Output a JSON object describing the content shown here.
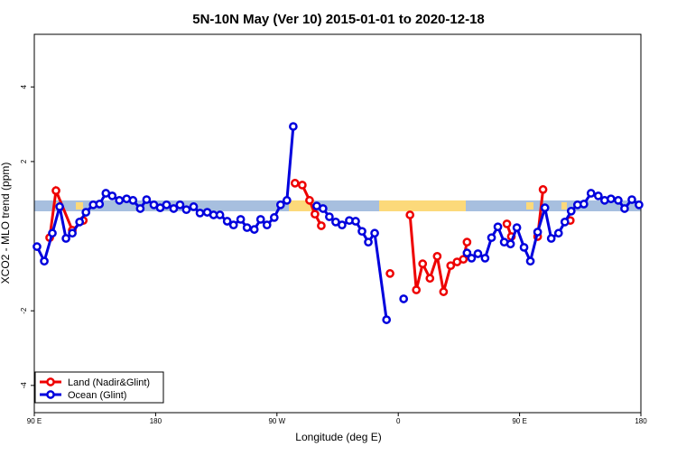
{
  "chart_data": {
    "type": "line",
    "title": "5N-10N May (Ver 10)   2015-01-01 to 2020-12-18",
    "x_label": "Longitude (deg E)",
    "y_label": "XCO2 - MLO trend (ppm)",
    "xlim": [
      90,
      540
    ],
    "xticks": [
      {
        "value": 90,
        "label": "90 E"
      },
      {
        "value": 180,
        "label": "180"
      },
      {
        "value": 270,
        "label": "90 W"
      },
      {
        "value": 360,
        "label": "0"
      },
      {
        "value": 450,
        "label": "90 E"
      },
      {
        "value": 540,
        "label": "180"
      }
    ],
    "ylim": [
      -4.73,
      5.41
    ],
    "yticks": [
      -4,
      -2,
      2,
      4
    ],
    "legend": "bottom-left",
    "series": [
      {
        "name": "Land (Nadir&Glint)",
        "color": "#ee0000",
        "x": [
          101.4,
          106.1,
          118.2,
          126.3,
          null,
          283.4,
          288.8,
          294.2,
          298.2,
          302.9,
          null,
          353.9,
          null,
          368.7,
          373.4,
          378.1,
          383.5,
          388.9,
          393.6,
          398.9,
          403.6,
          408.3,
          411.0,
          null,
          440.6,
          443.9,
          null,
          463.4,
          467.4,
          null,
          487.6
        ],
        "values": [
          -0.04,
          1.22,
          0.16,
          0.42,
          null,
          1.42,
          1.37,
          0.96,
          0.59,
          0.28,
          null,
          -1.0,
          null,
          0.57,
          -1.44,
          -0.74,
          -1.13,
          -0.54,
          -1.49,
          -0.79,
          -0.69,
          -0.62,
          -0.16,
          null,
          0.33,
          -0.01,
          null,
          -0.01,
          1.25,
          null,
          0.42
        ]
      },
      {
        "name": "Ocean (Glint)",
        "color": "#0000dd",
        "x": [
          92.0,
          97.4,
          103.4,
          108.8,
          113.5,
          118.2,
          123.6,
          128.3,
          133.7,
          138.4,
          143.1,
          147.8,
          153.1,
          158.5,
          163.2,
          168.6,
          173.3,
          178.7,
          183.4,
          188.1,
          193.4,
          198.1,
          202.8,
          208.2,
          212.9,
          218.3,
          223.0,
          227.7,
          233.1,
          237.8,
          243.1,
          247.8,
          253.2,
          257.9,
          262.6,
          268.0,
          272.7,
          277.4,
          282.1,
          null,
          299.5,
          304.2,
          308.9,
          313.6,
          318.3,
          323.7,
          328.4,
          333.1,
          337.8,
          342.5,
          351.3,
          null,
          364.0,
          null,
          411.0,
          414.4,
          419.1,
          424.4,
          429.2,
          433.9,
          438.6,
          443.3,
          448.0,
          453.3,
          458.0,
          463.4,
          468.8,
          473.5,
          478.9,
          483.6,
          488.3,
          493.0,
          497.7,
          503.0,
          508.4,
          513.1,
          517.8,
          523.2,
          527.9,
          533.3,
          538.6
        ],
        "values": [
          -0.28,
          -0.67,
          0.08,
          0.79,
          -0.06,
          0.08,
          0.38,
          0.64,
          0.84,
          0.86,
          1.15,
          1.08,
          0.96,
          1.0,
          0.96,
          0.74,
          0.98,
          0.84,
          0.76,
          0.84,
          0.74,
          0.84,
          0.71,
          0.79,
          0.62,
          0.64,
          0.57,
          0.57,
          0.4,
          0.3,
          0.45,
          0.23,
          0.18,
          0.45,
          0.3,
          0.5,
          0.84,
          0.96,
          2.94,
          null,
          0.81,
          0.74,
          0.52,
          0.38,
          0.3,
          0.42,
          0.4,
          0.13,
          -0.16,
          0.08,
          -2.24,
          null,
          -1.68,
          null,
          -0.45,
          -0.59,
          -0.47,
          -0.59,
          -0.04,
          0.25,
          -0.16,
          -0.21,
          0.23,
          -0.3,
          -0.67,
          0.11,
          0.76,
          -0.06,
          0.08,
          0.38,
          0.67,
          0.84,
          0.86,
          1.15,
          1.08,
          0.96,
          1.0,
          0.96,
          0.74,
          0.98,
          0.84
        ]
      }
    ]
  }
}
